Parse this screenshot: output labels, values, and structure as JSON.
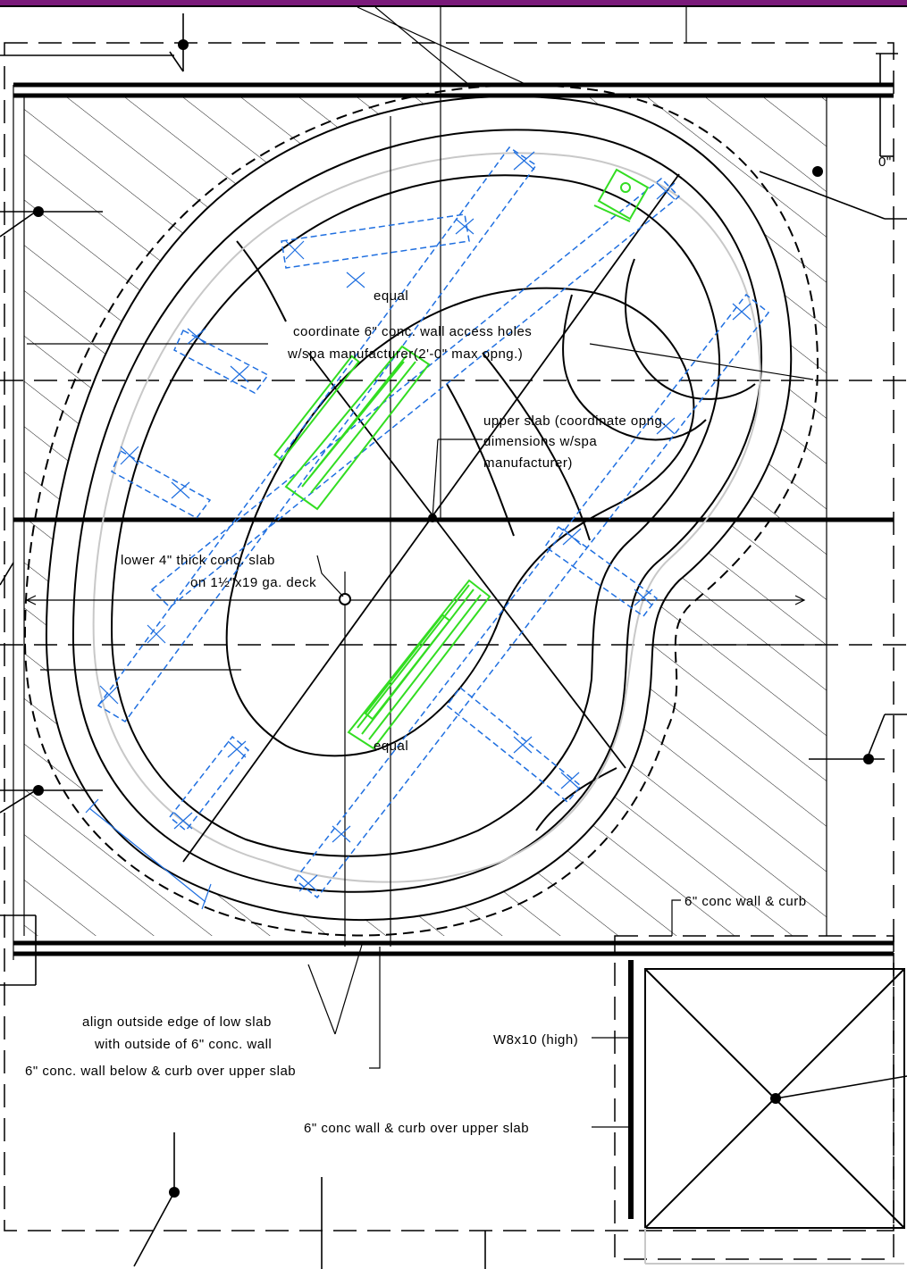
{
  "drawing": {
    "type": "structural framing plan detail (spa opening)",
    "accent_colors": {
      "line": "#000000",
      "blue_framing": "#1f6fe0",
      "green_jets": "#33dd22",
      "frame_border": "#7a1a7a",
      "ghost_outline": "#c8c8c8"
    }
  },
  "labels": {
    "equal_top": "equal",
    "equal_bottom": "equal",
    "access_holes_1": "coordinate 6\" conc. wall access holes",
    "access_holes_2": "w/spa manufacturer(2'-0\" max opng.)",
    "upper_slab_1": "upper slab (coordinate opng.",
    "upper_slab_2": "dimensions w/spa",
    "upper_slab_3": "manufacturer)",
    "lower_slab_1": "lower 4\" thick conc. slab",
    "lower_slab_2": "on 1½\"x19 ga. deck",
    "dim_zero": "0\"",
    "conc_wall_curb": "6\" conc wall & curb",
    "align_edge_1": "align outside edge of low slab",
    "align_edge_2": "with outside of 6\" conc. wall",
    "wall_below": "6\" conc. wall below & curb over upper slab",
    "beam": "W8x10 (high)",
    "wall_curb_upper": "6\" conc wall & curb over upper slab"
  }
}
